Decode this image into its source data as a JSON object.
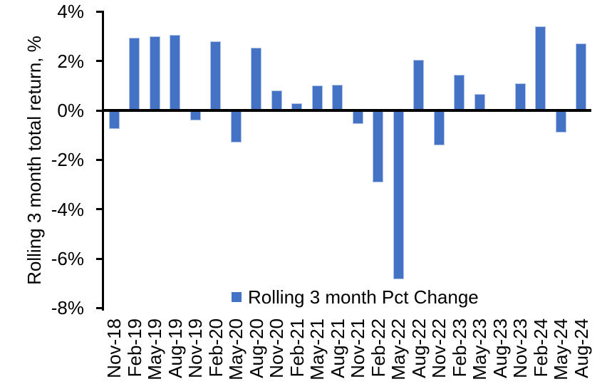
{
  "chart_data": {
    "type": "bar",
    "title": "",
    "xlabel": "",
    "ylabel": "Rolling 3 month total return, %",
    "ylim": [
      -8,
      4
    ],
    "ytick_step": 2,
    "yticks": [
      "4%",
      "2%",
      "0%",
      "-2%",
      "-4%",
      "-6%",
      "-8%"
    ],
    "grid": false,
    "legend": {
      "position": "bottom-center",
      "entries": [
        {
          "label": "Rolling 3 month Pct Change",
          "color": "#4472C4"
        }
      ]
    },
    "categories": [
      "Nov-18",
      "Feb-19",
      "May-19",
      "Aug-19",
      "Nov-19",
      "Feb-20",
      "May-20",
      "Aug-20",
      "Nov-20",
      "Feb-21",
      "May-21",
      "Aug-21",
      "Nov-21",
      "Feb-22",
      "May-22",
      "Aug-22",
      "Nov-22",
      "Feb-23",
      "May-23",
      "Aug-23",
      "Nov-23",
      "Feb-24",
      "May-24",
      "Aug-24"
    ],
    "series": [
      {
        "name": "Rolling 3 month Pct Change",
        "color": "#4472C4",
        "values": [
          -0.75,
          2.95,
          3.0,
          3.05,
          -0.4,
          2.8,
          -1.3,
          2.55,
          0.8,
          0.3,
          1.0,
          1.05,
          -0.55,
          -2.9,
          -6.85,
          2.05,
          -1.4,
          1.45,
          0.65,
          0.0,
          1.1,
          3.4,
          -0.9,
          2.7
        ]
      }
    ]
  },
  "colors": {
    "bar": "#4472C4",
    "bar_edge": "#AFC2E8",
    "axis": "#000000",
    "background": "#FFFFFF"
  }
}
